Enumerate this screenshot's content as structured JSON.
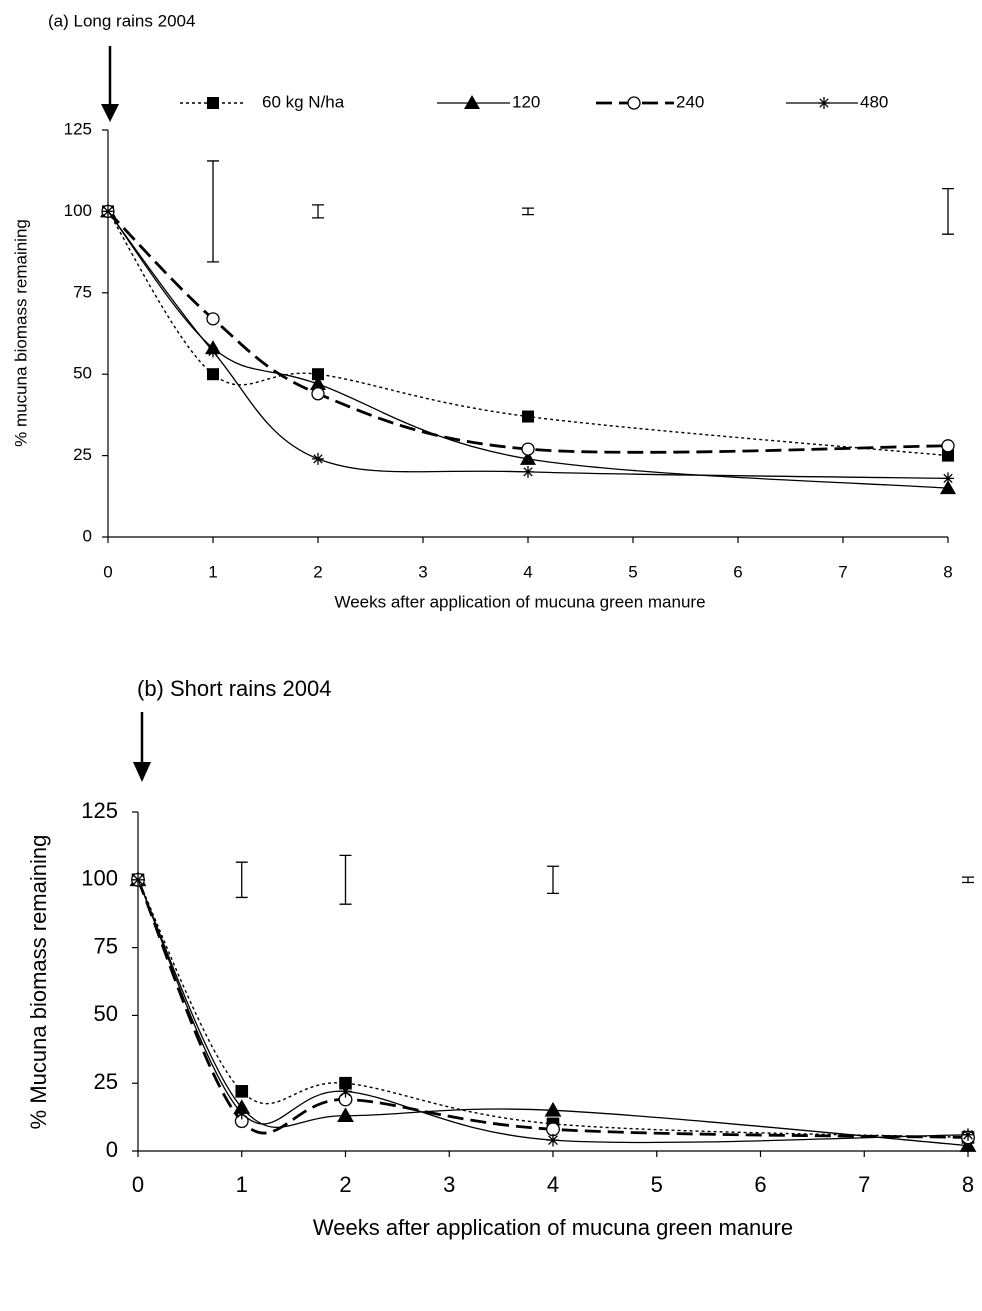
{
  "chart_data": [
    {
      "type": "line",
      "title": "(a)  Long rains 2004",
      "x_label": "Weeks after application of mucuna green manure",
      "y_label": "% mucuna biomass remaining",
      "x": [
        0,
        1,
        2,
        4,
        8
      ],
      "xlim": [
        0,
        8
      ],
      "xticks": [
        0,
        1,
        2,
        3,
        4,
        5,
        6,
        7,
        8
      ],
      "ylim": [
        0,
        125
      ],
      "yticks": [
        0,
        25,
        50,
        75,
        100,
        125
      ],
      "legend": true,
      "series": [
        {
          "name": "60 kg N/ha",
          "color": "#000000",
          "marker": "square",
          "dash": "dotted",
          "values": [
            100,
            50,
            50,
            37,
            25
          ]
        },
        {
          "name": "120",
          "color": "#000000",
          "marker": "triangle",
          "dash": "solid",
          "values": [
            100,
            58,
            47,
            24,
            15
          ]
        },
        {
          "name": "240",
          "color": "#000000",
          "marker": "circle",
          "dash": "dashed",
          "values": [
            100,
            67,
            44,
            27,
            28
          ]
        },
        {
          "name": "480",
          "color": "#000000",
          "marker": "star",
          "dash": "solid",
          "values": [
            100,
            57,
            24,
            20,
            18
          ]
        }
      ],
      "error_bars": {
        "x": [
          1,
          2,
          4,
          8
        ],
        "center": [
          100,
          100,
          100,
          100
        ],
        "error": [
          15.5,
          2,
          1,
          7
        ]
      }
    },
    {
      "type": "line",
      "title": "(b)  Short rains 2004",
      "x_label": "Weeks after application of mucuna green manure",
      "y_label": "% Mucuna biomass remaining",
      "x": [
        0,
        1,
        2,
        4,
        8
      ],
      "xlim": [
        0,
        8
      ],
      "xticks": [
        0,
        1,
        2,
        3,
        4,
        5,
        6,
        7,
        8
      ],
      "ylim": [
        0,
        125
      ],
      "yticks": [
        0,
        25,
        50,
        75,
        100,
        125
      ],
      "legend": false,
      "series": [
        {
          "name": "60 kg N/ha",
          "color": "#000000",
          "marker": "square",
          "dash": "dotted",
          "values": [
            100,
            22,
            25,
            10,
            5
          ]
        },
        {
          "name": "120",
          "color": "#000000",
          "marker": "triangle",
          "dash": "solid",
          "values": [
            100,
            16,
            13,
            15,
            2
          ]
        },
        {
          "name": "240",
          "color": "#000000",
          "marker": "circle",
          "dash": "dashed",
          "values": [
            100,
            11,
            19,
            8,
            5
          ]
        },
        {
          "name": "480",
          "color": "#000000",
          "marker": "star",
          "dash": "solid",
          "values": [
            100,
            14,
            22,
            4,
            6
          ]
        }
      ],
      "error_bars": {
        "x": [
          1,
          2,
          4,
          8
        ],
        "center": [
          100,
          100,
          100,
          100
        ],
        "error": [
          6.5,
          9,
          5,
          1
        ]
      }
    }
  ]
}
